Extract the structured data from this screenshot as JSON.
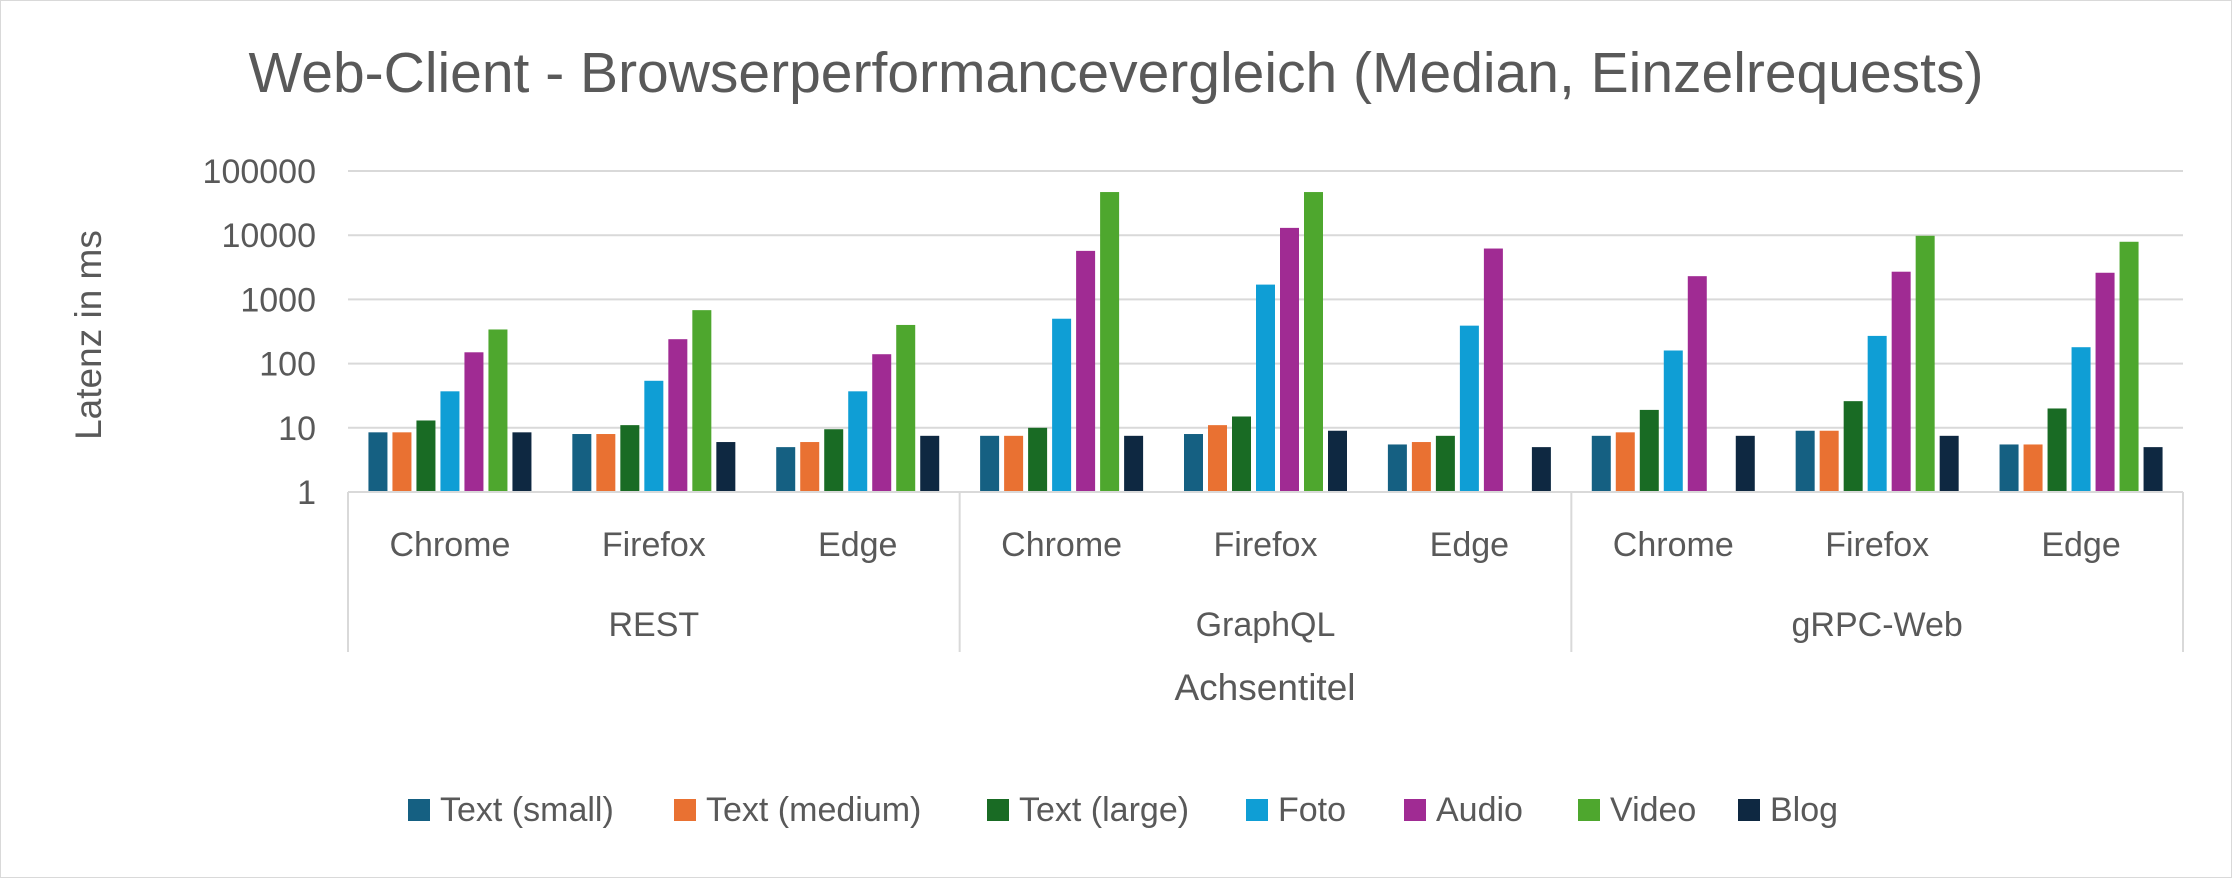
{
  "chart_data": {
    "type": "bar",
    "title": "Web-Client - Browserperformancevergleich (Median, Einzelrequests)",
    "ylabel": "Latenz in ms",
    "xlabel": "Achsentitel",
    "y_scale": "log",
    "ylim": [
      1,
      100000
    ],
    "yticks": [
      "1",
      "10",
      "100",
      "1000",
      "10000",
      "100000"
    ],
    "grid": true,
    "legend_position": "bottom",
    "groups": [
      {
        "label": "REST",
        "categories": [
          "Chrome",
          "Firefox",
          "Edge"
        ]
      },
      {
        "label": "GraphQL",
        "categories": [
          "Chrome",
          "Firefox",
          "Edge"
        ]
      },
      {
        "label": "gRPC-Web",
        "categories": [
          "Chrome",
          "Firefox",
          "Edge"
        ]
      }
    ],
    "series": [
      {
        "name": "Text (small)",
        "color": "#156082",
        "values": [
          8.5,
          8,
          5,
          7.5,
          8,
          5.5,
          7.5,
          9,
          5.5
        ]
      },
      {
        "name": "Text (medium)",
        "color": "#E97132",
        "values": [
          8.5,
          8,
          6,
          7.5,
          11,
          6,
          8.5,
          9,
          5.5
        ]
      },
      {
        "name": "Text (large)",
        "color": "#196B24",
        "values": [
          13,
          11,
          9.5,
          10,
          15,
          7.5,
          19,
          26,
          20
        ]
      },
      {
        "name": "Foto",
        "color": "#0F9ED5",
        "values": [
          37,
          54,
          37,
          500,
          1700,
          390,
          160,
          270,
          180
        ]
      },
      {
        "name": "Audio",
        "color": "#A02B93",
        "values": [
          150,
          240,
          140,
          5700,
          13000,
          6200,
          2300,
          2700,
          2600
        ]
      },
      {
        "name": "Video",
        "color": "#4EA72E",
        "values": [
          340,
          680,
          400,
          47000,
          47000,
          null,
          null,
          9800,
          7900
        ]
      },
      {
        "name": "Blog",
        "color": "#0E2841",
        "values": [
          8.5,
          6,
          7.5,
          7.5,
          9,
          5,
          7.5,
          7.5,
          5
        ]
      }
    ]
  }
}
